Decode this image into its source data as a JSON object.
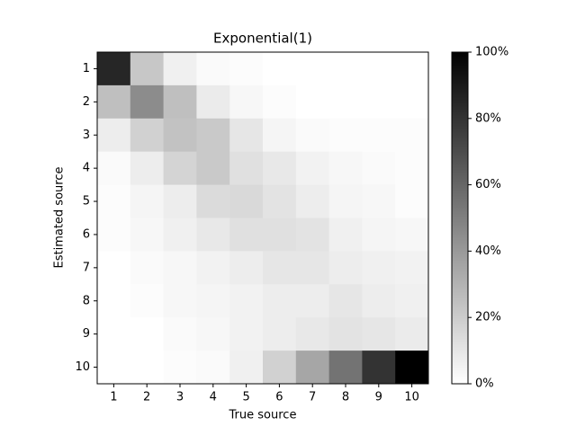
{
  "chart_data": {
    "type": "heatmap",
    "title": "Exponential(1)",
    "x_label": "True source",
    "y_label": "Estimated source",
    "x_categories": [
      1,
      2,
      3,
      4,
      5,
      6,
      7,
      8,
      9,
      10
    ],
    "y_categories": [
      1,
      2,
      3,
      4,
      5,
      6,
      7,
      8,
      9,
      10
    ],
    "values": [
      [
        85,
        22,
        6,
        2,
        1,
        0,
        0,
        0,
        0,
        0
      ],
      [
        25,
        45,
        25,
        8,
        3,
        1,
        0,
        0,
        0,
        0
      ],
      [
        7,
        18,
        24,
        21,
        10,
        4,
        2,
        1,
        1,
        1
      ],
      [
        2,
        7,
        17,
        21,
        12,
        9,
        5,
        3,
        2,
        1
      ],
      [
        1,
        4,
        7,
        14,
        15,
        11,
        7,
        4,
        3,
        1
      ],
      [
        1,
        3,
        6,
        9,
        12,
        12,
        11,
        6,
        4,
        3
      ],
      [
        0,
        2,
        3,
        5,
        7,
        10,
        10,
        7,
        6,
        5
      ],
      [
        0,
        1,
        3,
        4,
        5,
        7,
        7,
        10,
        7,
        6
      ],
      [
        0,
        0,
        2,
        3,
        5,
        7,
        9,
        11,
        10,
        8
      ],
      [
        0,
        0,
        1,
        2,
        6,
        18,
        35,
        55,
        80,
        100
      ]
    ],
    "colorscale": [
      "#ffffff",
      "#000000"
    ],
    "clim": [
      0,
      100
    ],
    "cticks": [
      {
        "value": 0,
        "label": "0%"
      },
      {
        "value": 20,
        "label": "20%"
      },
      {
        "value": 40,
        "label": "40%"
      },
      {
        "value": 60,
        "label": "60%"
      },
      {
        "value": 80,
        "label": "80%"
      },
      {
        "value": 100,
        "label": "100%"
      }
    ]
  }
}
